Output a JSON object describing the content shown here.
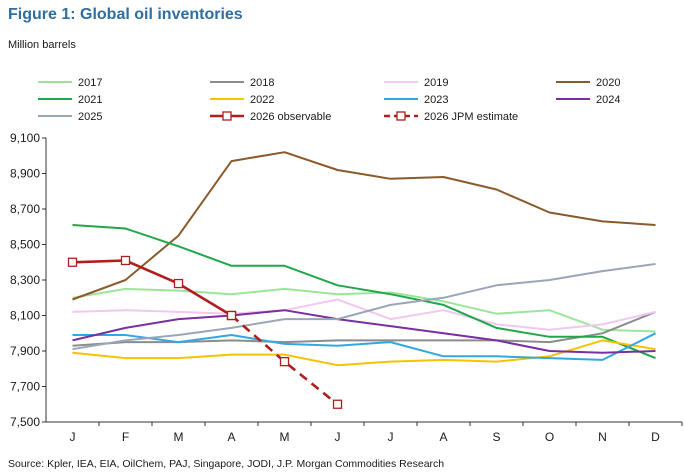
{
  "header": {
    "title": "Figure 1: Global oil inventories",
    "unit": "Million barrels"
  },
  "footer": {
    "source": "Source: Kpler, IEA, EIA, OilChem, PAJ, Singapore, JODI, J.P. Morgan Commodities Research"
  },
  "chart_data": {
    "type": "line",
    "title": "Figure 1: Global oil inventories",
    "ylabel": "Million barrels",
    "xlabel": "",
    "categories": [
      "J",
      "F",
      "M",
      "A",
      "M",
      "J",
      "J",
      "A",
      "S",
      "O",
      "N",
      "D"
    ],
    "ylim": [
      7500,
      9100
    ],
    "yticks": [
      7500,
      7700,
      7900,
      8100,
      8300,
      8500,
      8700,
      8900,
      9100
    ],
    "ytick_labels": [
      "7,500",
      "7,700",
      "7,900",
      "8,100",
      "8,300",
      "8,500",
      "8,700",
      "8,900",
      "9,100"
    ],
    "grid": false,
    "legend": "top",
    "series": [
      {
        "name": "2017",
        "color": "#9be59b",
        "style": "solid",
        "values": [
          8200,
          8250,
          8240,
          8220,
          8250,
          8220,
          8230,
          8180,
          8110,
          8130,
          8020,
          8010
        ]
      },
      {
        "name": "2018",
        "color": "#8c8c8c",
        "style": "solid",
        "values": [
          7930,
          7950,
          7950,
          7960,
          7950,
          7960,
          7960,
          7960,
          7960,
          7950,
          8000,
          8120
        ]
      },
      {
        "name": "2019",
        "color": "#f0c8f0",
        "style": "solid",
        "values": [
          8120,
          8130,
          8120,
          8110,
          8130,
          8190,
          8080,
          8130,
          8050,
          8020,
          8050,
          8120
        ]
      },
      {
        "name": "2020",
        "color": "#8b5a2b",
        "style": "solid",
        "values": [
          8190,
          8300,
          8550,
          8970,
          9020,
          8920,
          8870,
          8880,
          8810,
          8680,
          8630,
          8610
        ]
      },
      {
        "name": "2021",
        "color": "#22a64a",
        "style": "solid",
        "values": [
          8610,
          8590,
          8490,
          8380,
          8380,
          8270,
          8220,
          8160,
          8030,
          7980,
          7980,
          7860
        ]
      },
      {
        "name": "2022",
        "color": "#f5c400",
        "style": "solid",
        "values": [
          7890,
          7860,
          7860,
          7880,
          7880,
          7820,
          7840,
          7850,
          7840,
          7870,
          7960,
          7910
        ]
      },
      {
        "name": "2023",
        "color": "#33a8e0",
        "style": "solid",
        "values": [
          7990,
          7990,
          7950,
          7990,
          7940,
          7930,
          7950,
          7870,
          7870,
          7860,
          7850,
          8000
        ]
      },
      {
        "name": "2024",
        "color": "#7a2ea0",
        "style": "solid",
        "values": [
          7960,
          8030,
          8080,
          8100,
          8130,
          8080,
          8040,
          8000,
          7960,
          7900,
          7890,
          7900
        ]
      },
      {
        "name": "2025",
        "color": "#9aa6b8",
        "style": "solid",
        "values": [
          7910,
          7960,
          7990,
          8030,
          8080,
          8080,
          8160,
          8200,
          8270,
          8300,
          8350,
          8390
        ]
      },
      {
        "name": "2026 observable",
        "color": "#b01e1e",
        "style": "solid",
        "marker": "square",
        "values": [
          8400,
          8410,
          8280,
          8100,
          null,
          null,
          null,
          null,
          null,
          null,
          null,
          null
        ]
      },
      {
        "name": "2026 JPM estimate",
        "color": "#b01e1e",
        "style": "dashed",
        "marker": "square",
        "values": [
          null,
          null,
          null,
          8100,
          7840,
          7600,
          null,
          null,
          null,
          null,
          null,
          null
        ]
      }
    ]
  }
}
